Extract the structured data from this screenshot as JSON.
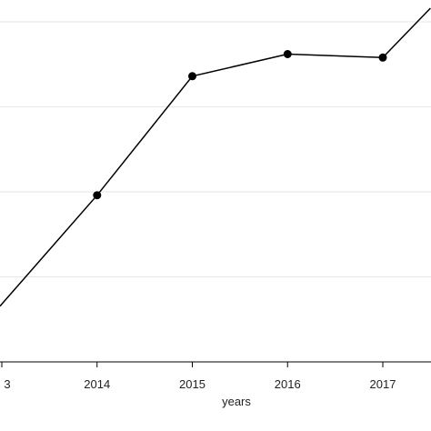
{
  "chart_data": {
    "type": "line",
    "xlabel": "years",
    "ylabel": "",
    "title": "",
    "x_ticks": [
      "3",
      "2014",
      "2015",
      "2016",
      "2017"
    ],
    "xlim": [
      2012.97,
      2017.5
    ],
    "ylim": [
      0,
      1
    ],
    "grid": "horizontal",
    "legend": "none",
    "series": [
      {
        "x": [
          2013,
          2014,
          2015,
          2016,
          2017,
          2017.5
        ],
        "y": [
          0.17,
          0.49,
          0.84,
          0.905,
          0.895,
          1.04
        ]
      }
    ],
    "colors": {
      "line": "#000000",
      "marker": "#000000",
      "grid": "#e6e6e6",
      "axis": "#000000"
    }
  }
}
